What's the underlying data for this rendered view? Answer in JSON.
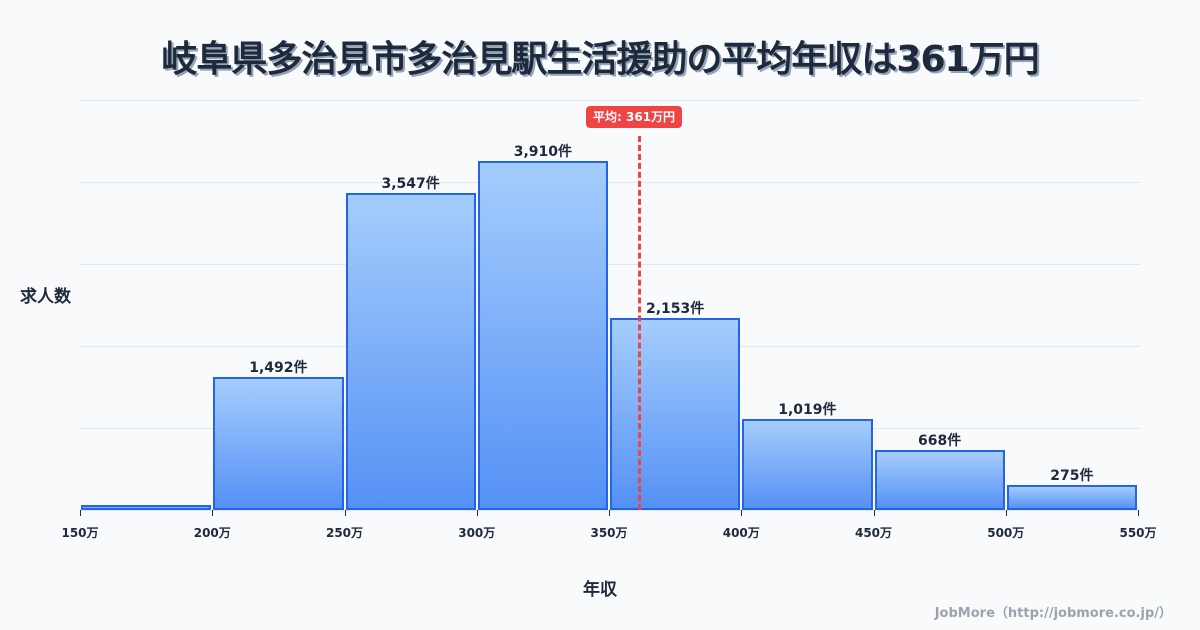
{
  "title": "岐阜県多治見市多治見駅生活援助の平均年収は361万円",
  "ylabel": "求人数",
  "xlabel": "年収",
  "average": {
    "label": "平均: 361万円",
    "value": 361,
    "color": "#ef4444"
  },
  "credit": "JobMore（http://jobmore.co.jp/）",
  "colors": {
    "bar_border": "#2563eb",
    "bar_top": "#a5cdfc",
    "bar_bottom": "#5591f5",
    "text": "#1e293b"
  },
  "chart_data": {
    "type": "bar",
    "title": "岐阜県多治見市多治見駅生活援助の平均年収は361万円",
    "xlabel": "年収",
    "ylabel": "求人数",
    "categories": [
      "150-200万",
      "200-250万",
      "250-300万",
      "300-350万",
      "350-400万",
      "400-450万",
      "450-500万",
      "500-550万"
    ],
    "values": [
      56,
      1492,
      3547,
      3910,
      2153,
      1019,
      668,
      275
    ],
    "value_labels": [
      "",
      "1,492件",
      "3,547件",
      "3,910件",
      "2,153件",
      "1,019件",
      "668件",
      "275件"
    ],
    "x_ticks": [
      "150万",
      "200万",
      "250万",
      "300万",
      "350万",
      "400万",
      "450万",
      "500万",
      "550万"
    ],
    "ylim": [
      0,
      4593
    ],
    "grid": true,
    "annotations": [
      {
        "type": "vline",
        "x": 361,
        "label": "平均: 361万円"
      }
    ]
  }
}
